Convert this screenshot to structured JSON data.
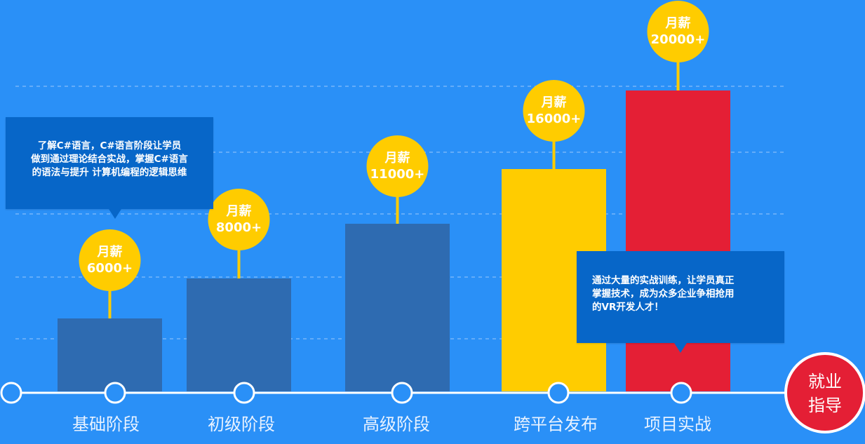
{
  "chart_data": {
    "type": "bar",
    "categories": [
      "基础阶段",
      "初级阶段",
      "高级阶段",
      "跨平台发布",
      "项目实战"
    ],
    "values": [
      6000,
      8000,
      11000,
      16000,
      20000
    ],
    "bubble_prefix": "月薪",
    "bubble_values": [
      "6000+",
      "8000+",
      "11000+",
      "16000+",
      "20000+"
    ],
    "bar_colors": [
      "#2e6bb1",
      "#2e6bb1",
      "#2e6bb1",
      "#ffcc00",
      "#e41f35"
    ],
    "bubble_color": "#ffcc00",
    "grid": true,
    "final_stage": [
      "就业",
      "指导"
    ],
    "title": "",
    "xlabel": "",
    "ylabel": ""
  },
  "callouts": {
    "left": [
      "了解C#语言，C#语言阶段让学员",
      "做到通过理论结合实战，掌握C#语言",
      "的语法与提升   计算机编程的逻辑思维"
    ],
    "right": [
      "通过大量的实战训练，让学员真正",
      "掌握技术，成为众多企业争相抢用",
      "的VR开发人才！"
    ]
  },
  "colors": {
    "background": "#2a90f7",
    "callout": "#0766c8",
    "final_circle": "#e41f35"
  }
}
